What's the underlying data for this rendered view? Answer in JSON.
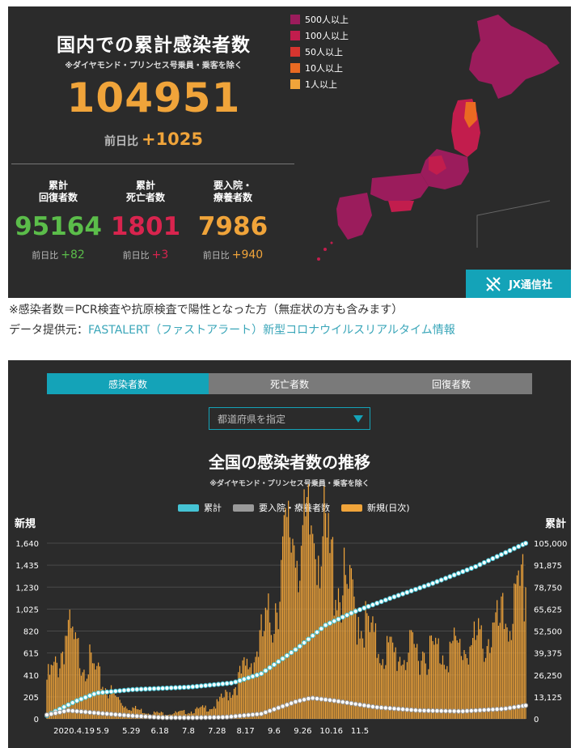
{
  "summary": {
    "title": "国内での累計感染者数",
    "subtitle": "※ダイヤモンド・プリンセス号乗員・乗客を除く",
    "total": "104951",
    "diff_label": "前日比",
    "diff_value": "+1025",
    "stats": [
      {
        "label_line1": "累計",
        "label_line2": "回復者数",
        "value": "95164",
        "diff_label": "前日比",
        "diff": "+82",
        "color": "#5bbd4a"
      },
      {
        "label_line1": "累計",
        "label_line2": "死亡者数",
        "value": "1801",
        "diff_label": "前日比",
        "diff": "+3",
        "color": "#d8244e"
      },
      {
        "label_line1": "要入院・",
        "label_line2": "療養者数",
        "value": "7986",
        "diff_label": "前日比",
        "diff": "+940",
        "color": "#f0a43a"
      }
    ]
  },
  "map_legend": [
    {
      "label": "500人以上",
      "color": "#9b1c5c"
    },
    {
      "label": "100人以上",
      "color": "#c21d4d"
    },
    {
      "label": "50人以上",
      "color": "#d7352f"
    },
    {
      "label": "10人以上",
      "color": "#ea6a22"
    },
    {
      "label": "1人以上",
      "color": "#f0a43a"
    }
  ],
  "brand": {
    "name": "JX通信社",
    "color": "#14a3b8"
  },
  "notes": {
    "note1": "※感染者数＝PCR検査や抗原検査で陽性となった方（無症状の方も含みます）",
    "note2_prefix": "データ提供元：",
    "note2_link": "FASTALERT（ファストアラート）新型コロナウイルスリアルタイム情報"
  },
  "tabs": [
    {
      "label": "感染者数",
      "active": true
    },
    {
      "label": "死亡者数",
      "active": false
    },
    {
      "label": "回復者数",
      "active": false
    }
  ],
  "prefecture_select": {
    "label": "都道府県を指定"
  },
  "chart_data": {
    "type": "bar",
    "title": "全国の感染者数の推移",
    "subtitle": "※ダイヤモンド・プリンセス号乗員・乗客を除く",
    "left_axis_label": "新規",
    "right_axis_label": "累計",
    "left_ticks": [
      "0",
      "205",
      "410",
      "615",
      "820",
      "1,025",
      "1,230",
      "1,435",
      "1,640"
    ],
    "right_ticks": [
      "0",
      "13,125",
      "26,250",
      "39,375",
      "52,500",
      "65,625",
      "78,750",
      "91,875",
      "105,000"
    ],
    "left_max": 1640,
    "right_max": 105000,
    "x_ticks": [
      "2020.4.19",
      "5.9",
      "5.29",
      "6.18",
      "7.8",
      "7.28",
      "8.17",
      "9.6",
      "9.26",
      "10.16",
      "11.5"
    ],
    "series": [
      {
        "name": "累計",
        "color": "#45c3d4",
        "type": "line",
        "anchors": [
          [
            0,
            2000
          ],
          [
            20,
            10500
          ],
          [
            35,
            15500
          ],
          [
            60,
            17500
          ],
          [
            100,
            19000
          ],
          [
            130,
            21500
          ],
          [
            150,
            27000
          ],
          [
            175,
            42000
          ],
          [
            195,
            56000
          ],
          [
            215,
            64000
          ],
          [
            240,
            72000
          ],
          [
            270,
            81000
          ],
          [
            300,
            91000
          ],
          [
            330,
            103000
          ],
          [
            335,
            104951
          ]
        ]
      },
      {
        "name": "要入院・療養者数",
        "color": "#9a9a9a",
        "type": "line",
        "anchors": [
          [
            0,
            2400
          ],
          [
            15,
            5000
          ],
          [
            35,
            3500
          ],
          [
            60,
            1800
          ],
          [
            80,
            800
          ],
          [
            100,
            700
          ],
          [
            125,
            1000
          ],
          [
            150,
            3000
          ],
          [
            175,
            10500
          ],
          [
            185,
            12500
          ],
          [
            200,
            11000
          ],
          [
            230,
            7000
          ],
          [
            260,
            5000
          ],
          [
            290,
            4500
          ],
          [
            320,
            6000
          ],
          [
            335,
            7986
          ]
        ]
      },
      {
        "name": "新規(日次)",
        "color": "#f0a43a",
        "type": "bar",
        "anchors": [
          [
            0,
            300
          ],
          [
            8,
            420
          ],
          [
            14,
            680
          ],
          [
            20,
            520
          ],
          [
            30,
            420
          ],
          [
            40,
            250
          ],
          [
            55,
            100
          ],
          [
            70,
            50
          ],
          [
            85,
            40
          ],
          [
            100,
            55
          ],
          [
            118,
            100
          ],
          [
            130,
            230
          ],
          [
            145,
            480
          ],
          [
            158,
            800
          ],
          [
            165,
            1200
          ],
          [
            172,
            1450
          ],
          [
            180,
            1300
          ],
          [
            188,
            1520
          ],
          [
            196,
            1250
          ],
          [
            206,
            1000
          ],
          [
            218,
            820
          ],
          [
            230,
            560
          ],
          [
            245,
            480
          ],
          [
            262,
            520
          ],
          [
            280,
            520
          ],
          [
            298,
            560
          ],
          [
            312,
            640
          ],
          [
            322,
            760
          ],
          [
            330,
            860
          ],
          [
            335,
            1025
          ]
        ]
      }
    ],
    "n_days": 336
  }
}
